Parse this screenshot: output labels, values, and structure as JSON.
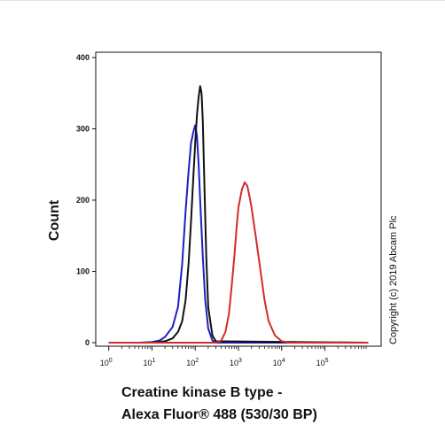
{
  "chart_data": {
    "type": "line",
    "title": "",
    "xlabel_line1": "Creatine kinase B type -",
    "xlabel_line2": "Alexa Fluor® 488 (530/30 BP)",
    "ylabel": "Count",
    "xscale": "log",
    "xlim": [
      0.5,
      2000000
    ],
    "ylim": [
      0,
      400
    ],
    "y_ticks": [
      "0",
      "100",
      "200",
      "300",
      "400"
    ],
    "x_ticks": [
      {
        "base": "10",
        "exp": "0"
      },
      {
        "base": "10",
        "exp": "1"
      },
      {
        "base": "10",
        "exp": "2"
      },
      {
        "base": "10",
        "exp": "3"
      },
      {
        "base": "10",
        "exp": "4"
      },
      {
        "base": "10",
        "exp": "5"
      }
    ],
    "copyright": "Copyright (c) 2019 Abcam Plc",
    "series": [
      {
        "color": "#1f1fbf",
        "x": [
          1,
          5,
          10,
          15,
          20,
          30,
          40,
          50,
          60,
          70,
          80,
          90,
          100,
          110,
          120,
          130,
          150,
          170,
          200,
          250,
          300,
          1000000
        ],
        "y": [
          0,
          0,
          1,
          3,
          8,
          22,
          50,
          110,
          185,
          240,
          280,
          295,
          305,
          290,
          250,
          200,
          120,
          60,
          20,
          3,
          0,
          0
        ]
      },
      {
        "color": "#111111",
        "x": [
          1,
          10,
          20,
          30,
          40,
          50,
          60,
          70,
          80,
          90,
          100,
          110,
          120,
          130,
          140,
          150,
          160,
          180,
          200,
          250,
          300,
          1000000
        ],
        "y": [
          0,
          0,
          2,
          6,
          15,
          30,
          60,
          110,
          170,
          230,
          280,
          320,
          345,
          360,
          350,
          310,
          240,
          120,
          50,
          10,
          2,
          0
        ]
      },
      {
        "color": "#d42a2a",
        "x": [
          1,
          300,
          400,
          500,
          600,
          700,
          800,
          900,
          1000,
          1200,
          1400,
          1600,
          1800,
          2000,
          2500,
          3000,
          4000,
          5000,
          7000,
          10000,
          15000,
          1000000
        ],
        "y": [
          0,
          0,
          3,
          15,
          40,
          80,
          120,
          160,
          190,
          215,
          225,
          220,
          205,
          190,
          150,
          115,
          60,
          30,
          10,
          2,
          0,
          0
        ]
      }
    ]
  }
}
